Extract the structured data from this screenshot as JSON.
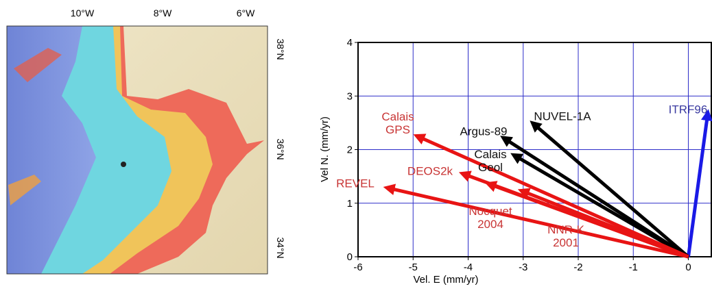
{
  "map": {
    "lon_labels": [
      "10°W",
      "8°W",
      "6°W"
    ],
    "lat_labels": [
      "38°N",
      "36°N",
      "34°N"
    ]
  },
  "chart_data": {
    "type": "vector",
    "x_label": "Vel. E (mm/yr)",
    "y_label": "Vel N. (mm/yr)",
    "xlim": [
      -6,
      0.43
    ],
    "ylim": [
      0,
      4
    ],
    "xticks": [
      -6,
      -5,
      -4,
      -3,
      -2,
      -1,
      0
    ],
    "yticks": [
      0,
      1,
      2,
      3,
      4
    ],
    "grid": true,
    "grid_color": "#2c2cc8",
    "series": [
      {
        "name": "ITRF96",
        "color": "#1a1ae6",
        "x": [
          0.35
        ],
        "values": [
          2.65
        ]
      },
      {
        "name": "NUVEL-1A",
        "color": "#000000",
        "x": [
          -2.8
        ],
        "values": [
          2.47
        ]
      },
      {
        "name": "Argus-89",
        "color": "#000000",
        "x": [
          -3.33
        ],
        "values": [
          2.2
        ]
      },
      {
        "name": "Calais\nGeol",
        "color": "#000000",
        "x": [
          -3.14
        ],
        "values": [
          1.88
        ]
      },
      {
        "name": "Calais\nGPS",
        "color": "#e81414",
        "x": [
          -4.9
        ],
        "values": [
          2.24
        ]
      },
      {
        "name": "DEOS2k",
        "color": "#e81414",
        "x": [
          -4.07
        ],
        "values": [
          1.54
        ]
      },
      {
        "name": "Nocquet\n2004",
        "color": "#e81414",
        "x": [
          -3.6
        ],
        "values": [
          1.35
        ]
      },
      {
        "name": "NNR-K\n2001",
        "color": "#e81414",
        "x": [
          -3.0
        ],
        "values": [
          1.22
        ]
      },
      {
        "name": "REVEL",
        "color": "#e81414",
        "x": [
          -5.44
        ],
        "values": [
          1.28
        ]
      }
    ]
  }
}
